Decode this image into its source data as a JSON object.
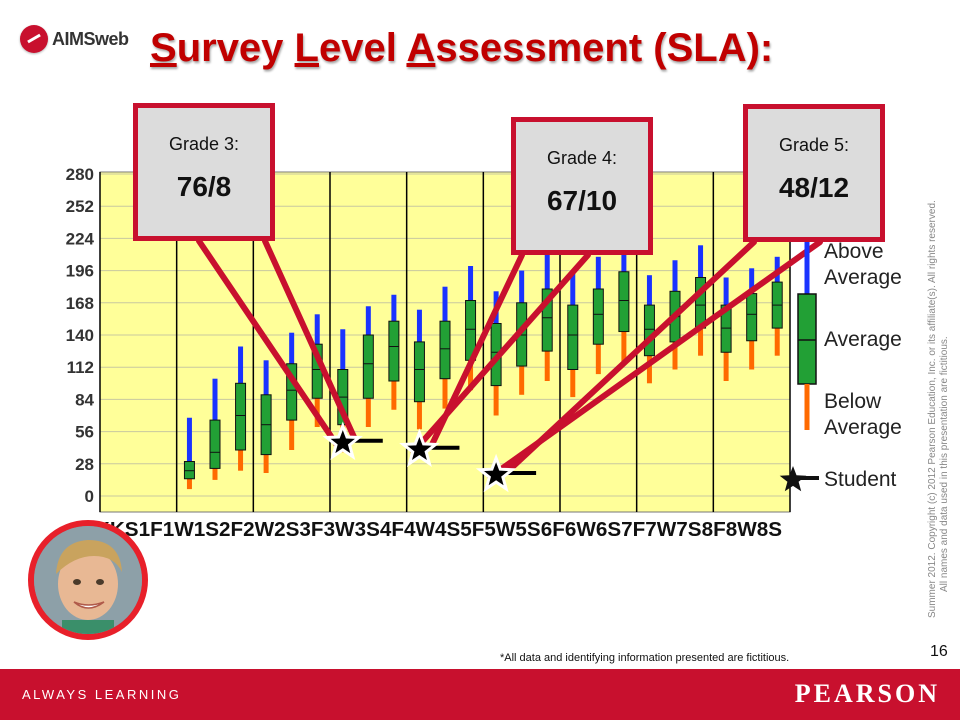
{
  "header": {
    "logo_text": "AIMSweb",
    "title_parts": [
      {
        "u": "S",
        "rest": "urvey "
      },
      {
        "u": "L",
        "rest": "evel "
      },
      {
        "u": "A",
        "rest": "ssessment (SLA):"
      }
    ]
  },
  "callouts": [
    {
      "label": "Grade 3:",
      "value": "76/8"
    },
    {
      "label": "Grade 4:",
      "value": "67/10"
    },
    {
      "label": "Grade 5:",
      "value": "48/12"
    }
  ],
  "colors": {
    "accent": "#c8102e",
    "plot_bg": "#ffff99",
    "whisker_top": "#1a33ff",
    "box_fill": "#22a035",
    "whisker_bottom": "#ff6a00",
    "student_marker": "#000000"
  },
  "chart_data": {
    "type": "box",
    "title": "",
    "xlabel": "",
    "ylabel": "",
    "ylim": [
      0,
      280
    ],
    "y_ticks": [
      0,
      28,
      56,
      84,
      112,
      140,
      168,
      196,
      224,
      252,
      280
    ],
    "categories": [
      "K",
      "KW",
      "KS",
      "1F",
      "1W",
      "1S",
      "2F",
      "2W",
      "2S",
      "3F",
      "3W",
      "3S",
      "4F",
      "4W",
      "4S",
      "5F",
      "5W",
      "5S",
      "6F",
      "6W",
      "6S",
      "7F",
      "7W",
      "7S",
      "8F",
      "8W",
      "8S"
    ],
    "x_tick_labels": [
      "K",
      "K",
      "K",
      "1F",
      "1W",
      "1S",
      "2F",
      "2W",
      "2S",
      "3F",
      "3W",
      "3S",
      "4F",
      "4W",
      "4S",
      "5F",
      "5W",
      "5S",
      "6F",
      "6W",
      "6S",
      "7F",
      "7W",
      "7S",
      "8F",
      "8W",
      "8S"
    ],
    "x_tick_label_text": "KKKS1F1W1S2F2W2S3F3W3S4F4W4S5F5W5S6F6W6S7F7W7S8F8W8S",
    "boxes": [
      {
        "category": "1F",
        "min": 6,
        "q1": 15,
        "median": 22,
        "q3": 30,
        "max": 68
      },
      {
        "category": "1W",
        "min": 14,
        "q1": 24,
        "median": 38,
        "q3": 66,
        "max": 102
      },
      {
        "category": "1S",
        "min": 22,
        "q1": 40,
        "median": 70,
        "q3": 98,
        "max": 130
      },
      {
        "category": "2F",
        "min": 20,
        "q1": 36,
        "median": 62,
        "q3": 88,
        "max": 118
      },
      {
        "category": "2W",
        "min": 40,
        "q1": 66,
        "median": 92,
        "q3": 115,
        "max": 142
      },
      {
        "category": "2S",
        "min": 60,
        "q1": 85,
        "median": 110,
        "q3": 132,
        "max": 158
      },
      {
        "category": "3F",
        "min": 38,
        "q1": 62,
        "median": 86,
        "q3": 110,
        "max": 145
      },
      {
        "category": "3W",
        "min": 60,
        "q1": 85,
        "median": 115,
        "q3": 140,
        "max": 165
      },
      {
        "category": "3S",
        "min": 75,
        "q1": 100,
        "median": 130,
        "q3": 152,
        "max": 175
      },
      {
        "category": "4F",
        "min": 58,
        "q1": 82,
        "median": 110,
        "q3": 134,
        "max": 162
      },
      {
        "category": "4W",
        "min": 76,
        "q1": 102,
        "median": 128,
        "q3": 152,
        "max": 182
      },
      {
        "category": "4S",
        "min": 92,
        "q1": 118,
        "median": 145,
        "q3": 170,
        "max": 200
      },
      {
        "category": "5F",
        "min": 70,
        "q1": 96,
        "median": 125,
        "q3": 150,
        "max": 178
      },
      {
        "category": "5W",
        "min": 88,
        "q1": 113,
        "median": 140,
        "q3": 168,
        "max": 196
      },
      {
        "category": "5S",
        "min": 100,
        "q1": 126,
        "median": 155,
        "q3": 180,
        "max": 210
      },
      {
        "category": "6F",
        "min": 86,
        "q1": 110,
        "median": 140,
        "q3": 166,
        "max": 196
      },
      {
        "category": "6W",
        "min": 106,
        "q1": 132,
        "median": 158,
        "q3": 180,
        "max": 208
      },
      {
        "category": "6S",
        "min": 116,
        "q1": 143,
        "median": 170,
        "q3": 195,
        "max": 220
      },
      {
        "category": "7F",
        "min": 98,
        "q1": 122,
        "median": 145,
        "q3": 166,
        "max": 192
      },
      {
        "category": "7W",
        "min": 110,
        "q1": 134,
        "median": 156,
        "q3": 178,
        "max": 205
      },
      {
        "category": "7S",
        "min": 122,
        "q1": 146,
        "median": 166,
        "q3": 190,
        "max": 218
      },
      {
        "category": "8F",
        "min": 100,
        "q1": 125,
        "median": 146,
        "q3": 166,
        "max": 190
      },
      {
        "category": "8W",
        "min": 110,
        "q1": 135,
        "median": 158,
        "q3": 176,
        "max": 198
      },
      {
        "category": "8S",
        "min": 122,
        "q1": 146,
        "median": 166,
        "q3": 186,
        "max": 208
      }
    ],
    "student_scores": [
      {
        "category": "3F",
        "value": 48,
        "label": "Grade 3: 76/8"
      },
      {
        "category": "4F",
        "value": 42,
        "label": "Grade 4: 67/10"
      },
      {
        "category": "5F",
        "value": 20,
        "label": "Grade 5: 48/12"
      }
    ],
    "legend": {
      "placement": "right",
      "entries": [
        "Above Average",
        "Average",
        "Below Average",
        "Student"
      ]
    },
    "grid": true
  },
  "copyright_lines": [
    "Summer 2012. Copyright (c) 2012 Pearson Education, Inc. or its affiliate(s). All rights reserved.",
    "All names and data used in this presentation are fictitious."
  ],
  "footnote": "*All data and identifying information presented are fictitious.",
  "page_number": "16",
  "footer": {
    "tagline": "ALWAYS LEARNING",
    "brand": "PEARSON"
  }
}
